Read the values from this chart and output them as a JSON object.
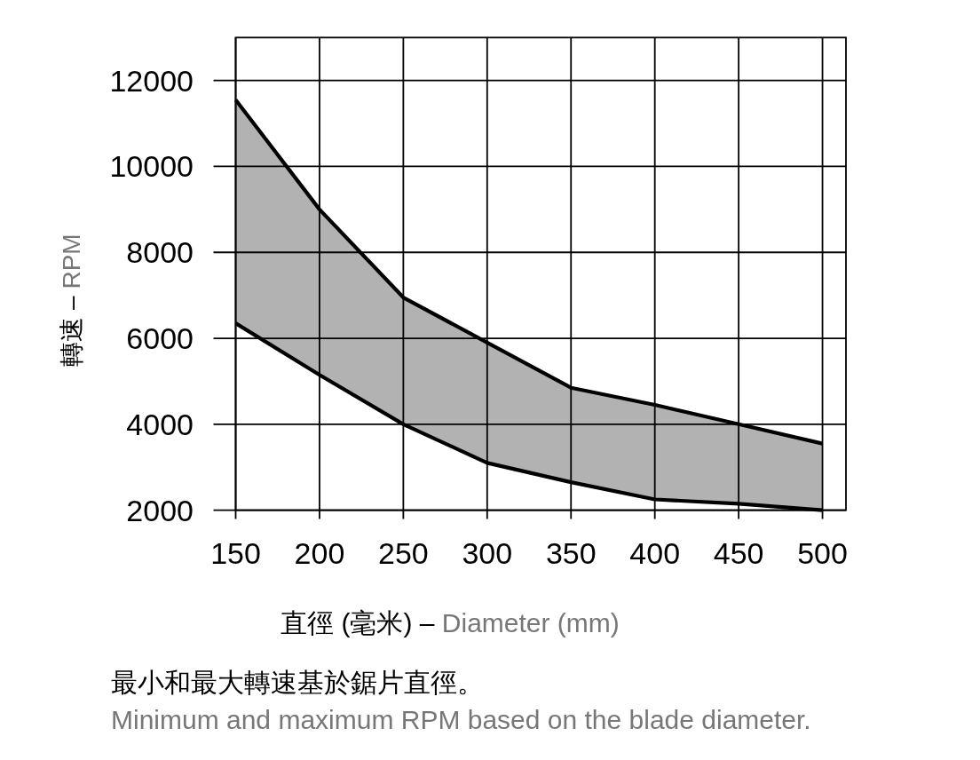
{
  "chart_data": {
    "type": "line",
    "xlabel": "直徑 (毫米) – Diameter (mm)",
    "ylabel": "轉速 – RPM",
    "annotations": [
      "最小和最大轉速基於鋸片直徑。",
      "Minimum and maximum RPM based on the blade diameter."
    ],
    "x": [
      150,
      200,
      250,
      300,
      350,
      400,
      450,
      500
    ],
    "series": [
      {
        "color": "#000000",
        "values": [
          11550,
          9000,
          6950,
          5900,
          4850,
          4450,
          4000,
          3550
        ],
        "lower": [
          6350,
          5150,
          4000,
          3100,
          2650,
          2250,
          2150,
          2000
        ],
        "upper": [
          11550,
          9000,
          6950,
          5900,
          4850,
          4450,
          4000,
          3550
        ]
      },
      {
        "color": "#000000",
        "values": [
          6350,
          5150,
          4000,
          3100,
          2650,
          2250,
          2150,
          2000
        ]
      }
    ],
    "xlim": [
      150,
      514
    ],
    "xticks": [
      150,
      200,
      250,
      300,
      350,
      400,
      450,
      500
    ],
    "ylim": [
      2000,
      13000
    ],
    "yticks": [
      2000,
      4000,
      6000,
      8000,
      10000,
      12000
    ],
    "grid": true
  }
}
